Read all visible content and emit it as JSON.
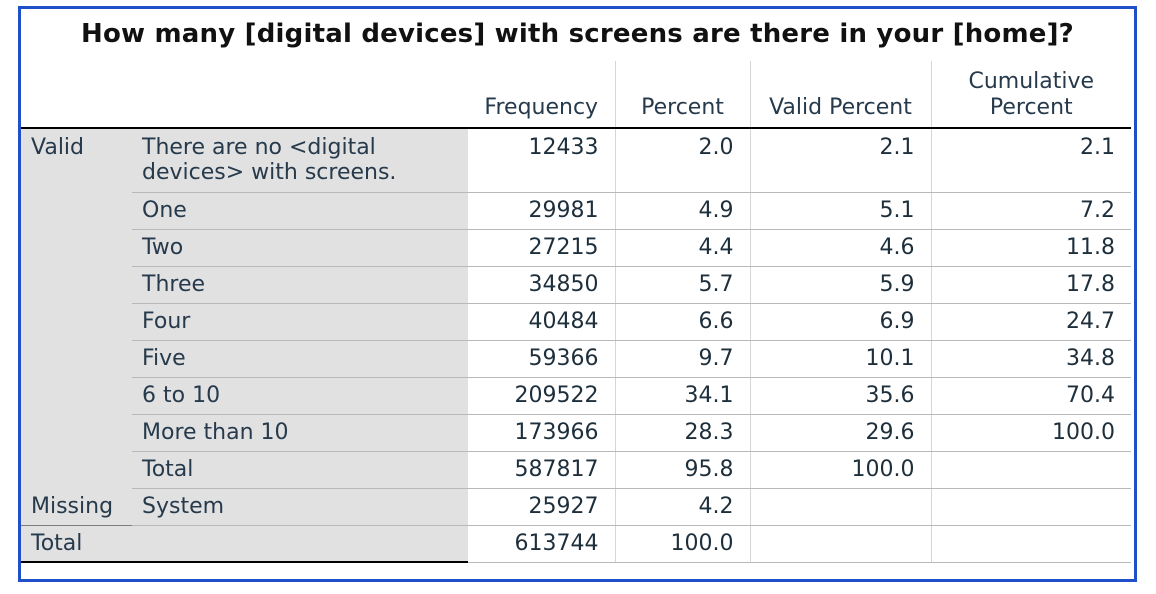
{
  "table": {
    "title": "How many [digital devices] with screens are there in your [home]?",
    "headers": {
      "frequency": "Frequency",
      "percent": "Percent",
      "valid_percent": "Valid Percent",
      "cumulative_percent_line1": "Cumulative",
      "cumulative_percent_line2": "Percent"
    },
    "valid_group_label": "Valid",
    "rows": [
      {
        "label_line1": "There are no <digital",
        "label_line2": "devices> with screens.",
        "frequency": "12433",
        "percent": "2.0",
        "valid_percent": "2.1",
        "cumulative_percent": "2.1"
      },
      {
        "label": "One",
        "frequency": "29981",
        "percent": "4.9",
        "valid_percent": "5.1",
        "cumulative_percent": "7.2"
      },
      {
        "label": "Two",
        "frequency": "27215",
        "percent": "4.4",
        "valid_percent": "4.6",
        "cumulative_percent": "11.8"
      },
      {
        "label": "Three",
        "frequency": "34850",
        "percent": "5.7",
        "valid_percent": "5.9",
        "cumulative_percent": "17.8"
      },
      {
        "label": "Four",
        "frequency": "40484",
        "percent": "6.6",
        "valid_percent": "6.9",
        "cumulative_percent": "24.7"
      },
      {
        "label": "Five",
        "frequency": "59366",
        "percent": "9.7",
        "valid_percent": "10.1",
        "cumulative_percent": "34.8"
      },
      {
        "label": "6 to 10",
        "frequency": "209522",
        "percent": "34.1",
        "valid_percent": "35.6",
        "cumulative_percent": "70.4"
      },
      {
        "label": "More than 10",
        "frequency": "173966",
        "percent": "28.3",
        "valid_percent": "29.6",
        "cumulative_percent": "100.0"
      },
      {
        "label": "Total",
        "frequency": "587817",
        "percent": "95.8",
        "valid_percent": "100.0",
        "cumulative_percent": ""
      }
    ],
    "missing": {
      "group_label": "Missing",
      "label": "System",
      "frequency": "25927",
      "percent": "4.2"
    },
    "grand_total": {
      "label": "Total",
      "frequency": "613744",
      "percent": "100.0"
    }
  },
  "colors": {
    "frame_border": "#1f4fc9",
    "stub_background": "#e1e1e1",
    "text": "#1e2f3c"
  }
}
